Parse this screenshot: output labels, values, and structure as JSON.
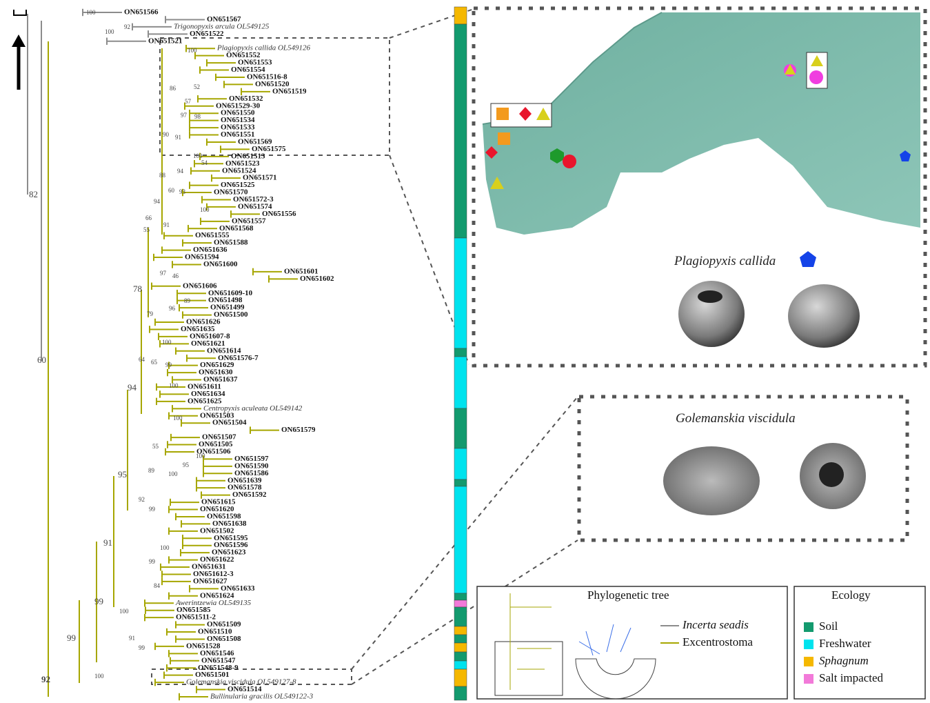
{
  "tree": {
    "tips": [
      "ON651566",
      "ON651567",
      "Trigonopyxis arcula OL549125",
      "ON651522",
      "ON651521",
      "Plagiopyxis callida OL549126",
      "ON651552",
      "ON651553",
      "ON651554",
      "ON651516-8",
      "ON651520",
      "ON651519",
      "ON651532",
      "ON651529-30",
      "ON651550",
      "ON651534",
      "ON651533",
      "ON651551",
      "ON651569",
      "ON651575",
      "ON651513",
      "ON651523",
      "ON651524",
      "ON651571",
      "ON651525",
      "ON651570",
      "ON651572-3",
      "ON651574",
      "ON651556",
      "ON651557",
      "ON651568",
      "ON651555",
      "ON651588",
      "ON651636",
      "ON651594",
      "ON651600",
      "ON651601",
      "ON651602",
      "ON651606",
      "ON651609-10",
      "ON651498",
      "ON651499",
      "ON651500",
      "ON651626",
      "ON651635",
      "ON651607-8",
      "ON651621",
      "ON651614",
      "ON651576-7",
      "ON651629",
      "ON651630",
      "ON651637",
      "ON651611",
      "ON651634",
      "ON651625",
      "Centropyxis aculeata OL549142",
      "ON651503",
      "ON651504",
      "ON651579",
      "ON651507",
      "ON651505",
      "ON651506",
      "ON651597",
      "ON651590",
      "ON651586",
      "ON651639",
      "ON651578",
      "ON651592",
      "ON651615",
      "ON651620",
      "ON651598",
      "ON651638",
      "ON651502",
      "ON651595",
      "ON651596",
      "ON651623",
      "ON651622",
      "ON651631",
      "ON651612-3",
      "ON651627",
      "ON651633",
      "ON651624",
      "Awerintzewia OL549135",
      "ON651585",
      "ON651511-2",
      "ON651509",
      "ON651510",
      "ON651508",
      "ON651528",
      "ON651546",
      "ON651547",
      "ON651548-9",
      "ON651501",
      "Golemanskia viscidula OL549127-8",
      "ON651514",
      "Bullinularia gracilis OL549122-3"
    ],
    "support": [
      100,
      92,
      100,
      82,
      60,
      92,
      100,
      86,
      52,
      57,
      97,
      98,
      90,
      91,
      100,
      54,
      94,
      88,
      60,
      93,
      100,
      94,
      66,
      91,
      55,
      78,
      97,
      46,
      89,
      96,
      79,
      100,
      64,
      65,
      99,
      94,
      100,
      100,
      55,
      89,
      95,
      100,
      100,
      95,
      92,
      99,
      91,
      100,
      99,
      84,
      99,
      100,
      91,
      99,
      99,
      100
    ]
  },
  "map_panel": {
    "species": "Plagiopyxis callida"
  },
  "detail_panel": {
    "species": "Golemanskia viscidula"
  },
  "tree_legend": {
    "title": "Phylogenetic tree",
    "items": [
      {
        "label": "Incerta seadis",
        "color": "#8c8c8c"
      },
      {
        "label": "Excentrostoma",
        "color": "#a6a600"
      }
    ]
  },
  "ecology_legend": {
    "title": "Ecology",
    "items": [
      {
        "label": "Soil",
        "color": "#139a6e"
      },
      {
        "label": "Freshwater",
        "color": "#00e3ee"
      },
      {
        "label": "Sphagnum",
        "color": "#f5b800"
      },
      {
        "label": "Salt impacted",
        "color": "#f27ad9"
      }
    ]
  }
}
